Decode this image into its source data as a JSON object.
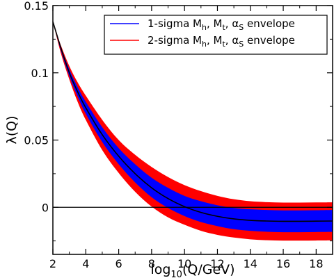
{
  "chart_data": {
    "type": "line",
    "xlabel": {
      "base": "log",
      "sub": "10",
      "rest": "(Q/GeV)"
    },
    "ylabel": "λ(Q)",
    "xlim": [
      2,
      19
    ],
    "ylim": [
      -0.035,
      0.15
    ],
    "x_ticks": [
      2,
      4,
      6,
      8,
      10,
      12,
      14,
      16,
      18
    ],
    "y_ticks": [
      0,
      0.05,
      0.1,
      0.15
    ],
    "y_tick_labels": [
      "0",
      "0.05",
      "0.1",
      "0.15"
    ],
    "grid": false,
    "legend_position": "top-right",
    "legend": [
      {
        "prefix": "1-sigma M",
        "color": "#0000ff"
      },
      {
        "prefix": "2-sigma M",
        "color": "#ff0000"
      }
    ],
    "legend_label_parts": {
      "h": "h",
      "t": "t",
      "alpha": "α",
      "s": "S",
      "envelope": "envelope",
      "sep": ", "
    },
    "zero_line": 0,
    "x": [
      2,
      2.5,
      3,
      3.5,
      4,
      5,
      6,
      7,
      8,
      9,
      10,
      11,
      12,
      13,
      14,
      15,
      16,
      17,
      18,
      19
    ],
    "series": [
      {
        "role": "central",
        "color": "#000000",
        "values": [
          0.138,
          0.118,
          0.1,
          0.086,
          0.074,
          0.054,
          0.038,
          0.025,
          0.0145,
          0.0065,
          0.0005,
          -0.0038,
          -0.0067,
          -0.0086,
          -0.0097,
          -0.0102,
          -0.0104,
          -0.0104,
          -0.0103,
          -0.0102
        ]
      },
      {
        "role": "band",
        "name": "1-sigma M_h, M_t, α_S envelope",
        "color": "#0000ff",
        "upper": [
          0.138,
          0.119,
          0.1025,
          0.0895,
          0.0785,
          0.0595,
          0.044,
          0.032,
          0.022,
          0.0145,
          0.0085,
          0.0045,
          0.0015,
          -0.0005,
          -0.0015,
          -0.002,
          -0.0023,
          -0.0023,
          -0.0022,
          -0.002
        ],
        "lower": [
          0.138,
          0.116,
          0.0975,
          0.0825,
          0.0695,
          0.0485,
          0.032,
          0.0185,
          0.0075,
          -0.0005,
          -0.0065,
          -0.011,
          -0.014,
          -0.0163,
          -0.0175,
          -0.0182,
          -0.0185,
          -0.0185,
          -0.0184,
          -0.0183
        ]
      },
      {
        "role": "band",
        "name": "2-sigma M_h, M_t, α_S envelope",
        "color": "#ff0000",
        "upper": [
          0.138,
          0.12,
          0.105,
          0.093,
          0.083,
          0.065,
          0.05,
          0.039,
          0.03,
          0.0225,
          0.0165,
          0.012,
          0.0085,
          0.006,
          0.0045,
          0.0038,
          0.0035,
          0.0035,
          0.0036,
          0.0037
        ],
        "lower": [
          0.138,
          0.114,
          0.095,
          0.0785,
          0.065,
          0.0425,
          0.0255,
          0.0115,
          0.0005,
          -0.0075,
          -0.013,
          -0.0175,
          -0.0205,
          -0.0225,
          -0.0238,
          -0.0245,
          -0.0248,
          -0.0248,
          -0.0247,
          -0.0246
        ]
      }
    ]
  }
}
